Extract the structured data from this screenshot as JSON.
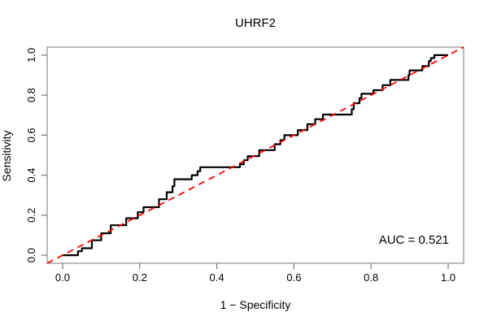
{
  "chart_data": {
    "type": "line",
    "title": "UHRF2",
    "xlabel": "1 − Specificity",
    "ylabel": "Sensitivity",
    "annotation": "AUC = 0.521",
    "auc_value": 0.521,
    "xlim": [
      0,
      1
    ],
    "ylim": [
      0,
      1
    ],
    "x_ticks": [
      "0.0",
      "0.2",
      "0.4",
      "0.6",
      "0.8",
      "1.0"
    ],
    "y_ticks": [
      "0.0",
      "0.2",
      "0.4",
      "0.6",
      "0.8",
      "1.0"
    ],
    "x_tick_values": [
      0,
      0.2,
      0.4,
      0.6,
      0.8,
      1.0
    ],
    "y_tick_values": [
      0,
      0.2,
      0.4,
      0.6,
      0.8,
      1.0
    ],
    "grid": false,
    "legend_position": "none",
    "colors": {
      "roc_curve": "#000000",
      "reference_line": "#ff0000",
      "axis": "#777777",
      "text": "#000000",
      "background": "#ffffff"
    },
    "series": [
      {
        "name": "ROC curve",
        "color": "#000000",
        "style": "solid",
        "width": 2.2,
        "points": [
          [
            0,
            0
          ],
          [
            0.04,
            0
          ],
          [
            0.04,
            0.02
          ],
          [
            0.05,
            0.02
          ],
          [
            0.05,
            0.035
          ],
          [
            0.076,
            0.035
          ],
          [
            0.076,
            0.075
          ],
          [
            0.1,
            0.075
          ],
          [
            0.1,
            0.11
          ],
          [
            0.125,
            0.11
          ],
          [
            0.125,
            0.15
          ],
          [
            0.165,
            0.15
          ],
          [
            0.165,
            0.185
          ],
          [
            0.195,
            0.185
          ],
          [
            0.195,
            0.215
          ],
          [
            0.21,
            0.215
          ],
          [
            0.21,
            0.24
          ],
          [
            0.25,
            0.24
          ],
          [
            0.25,
            0.28
          ],
          [
            0.27,
            0.28
          ],
          [
            0.27,
            0.315
          ],
          [
            0.285,
            0.315
          ],
          [
            0.285,
            0.345
          ],
          [
            0.29,
            0.345
          ],
          [
            0.29,
            0.38
          ],
          [
            0.335,
            0.38
          ],
          [
            0.335,
            0.4
          ],
          [
            0.35,
            0.4
          ],
          [
            0.35,
            0.42
          ],
          [
            0.357,
            0.42
          ],
          [
            0.357,
            0.44
          ],
          [
            0.46,
            0.44
          ],
          [
            0.46,
            0.455
          ],
          [
            0.47,
            0.455
          ],
          [
            0.47,
            0.475
          ],
          [
            0.48,
            0.475
          ],
          [
            0.48,
            0.495
          ],
          [
            0.51,
            0.495
          ],
          [
            0.51,
            0.525
          ],
          [
            0.55,
            0.525
          ],
          [
            0.55,
            0.555
          ],
          [
            0.565,
            0.555
          ],
          [
            0.565,
            0.575
          ],
          [
            0.575,
            0.575
          ],
          [
            0.575,
            0.6
          ],
          [
            0.61,
            0.6
          ],
          [
            0.61,
            0.625
          ],
          [
            0.635,
            0.625
          ],
          [
            0.635,
            0.655
          ],
          [
            0.655,
            0.655
          ],
          [
            0.655,
            0.68
          ],
          [
            0.675,
            0.68
          ],
          [
            0.675,
            0.703
          ],
          [
            0.75,
            0.703
          ],
          [
            0.75,
            0.73
          ],
          [
            0.755,
            0.73
          ],
          [
            0.755,
            0.76
          ],
          [
            0.77,
            0.76
          ],
          [
            0.77,
            0.785
          ],
          [
            0.775,
            0.785
          ],
          [
            0.775,
            0.807
          ],
          [
            0.806,
            0.807
          ],
          [
            0.806,
            0.825
          ],
          [
            0.83,
            0.825
          ],
          [
            0.83,
            0.85
          ],
          [
            0.85,
            0.85
          ],
          [
            0.85,
            0.876
          ],
          [
            0.897,
            0.876
          ],
          [
            0.897,
            0.9
          ],
          [
            0.9,
            0.9
          ],
          [
            0.9,
            0.924
          ],
          [
            0.933,
            0.924
          ],
          [
            0.933,
            0.945
          ],
          [
            0.95,
            0.945
          ],
          [
            0.95,
            0.97
          ],
          [
            0.955,
            0.97
          ],
          [
            0.955,
            0.985
          ],
          [
            0.964,
            0.985
          ],
          [
            0.964,
            1
          ],
          [
            1,
            1
          ]
        ]
      },
      {
        "name": "chance diagonal",
        "color": "#ff0000",
        "style": "dashed",
        "width": 1.8,
        "points": [
          [
            -0.04,
            -0.04
          ],
          [
            1.04,
            1.04
          ]
        ]
      }
    ]
  }
}
